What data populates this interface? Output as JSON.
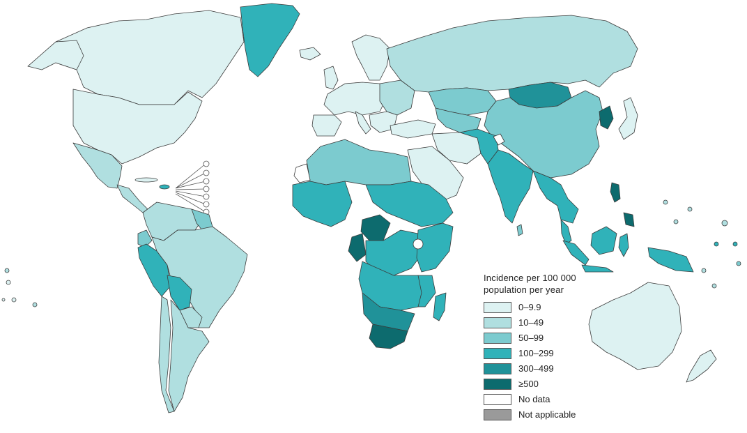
{
  "map": {
    "legend": {
      "title": "Incidence per 100 000\npopulation per year",
      "items": [
        {
          "label": "0–9.9",
          "color": "#ddf2f2"
        },
        {
          "label": "10–49",
          "color": "#b0dfe0"
        },
        {
          "label": "50–99",
          "color": "#7ccbcf"
        },
        {
          "label": "100–299",
          "color": "#30b2b9"
        },
        {
          "label": "300–499",
          "color": "#209299"
        },
        {
          "label": "≥500",
          "color": "#0d6b6e"
        },
        {
          "label": "No data",
          "color": "#ffffff"
        },
        {
          "label": "Not applicable",
          "color": "#9a9a9a"
        }
      ]
    },
    "colors": {
      "border": "#3b3b3b",
      "background": "#ffffff"
    }
  }
}
